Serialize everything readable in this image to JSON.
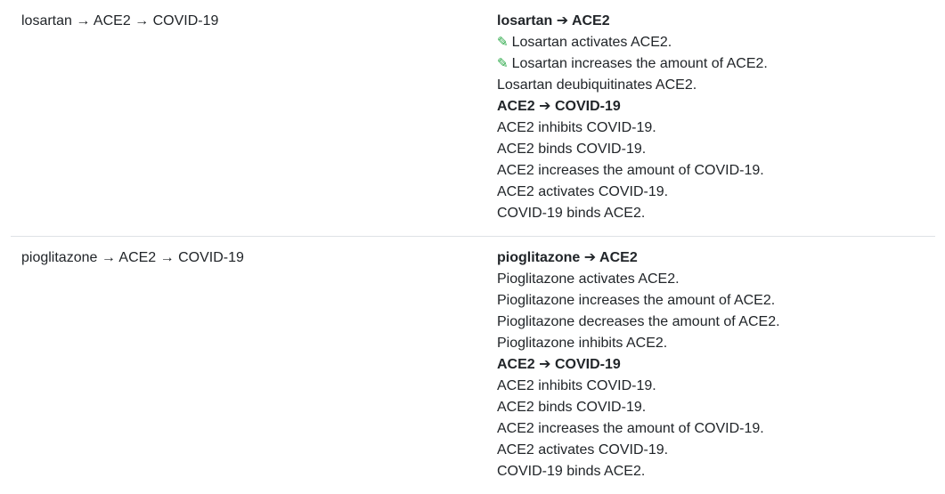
{
  "rows": [
    {
      "path": "losartan → ACE2 → COVID-19",
      "evidence": [
        {
          "type": "header",
          "text": "losartan ➔ ACE2"
        },
        {
          "type": "stmt",
          "curated": true,
          "text": "Losartan activates ACE2."
        },
        {
          "type": "stmt",
          "curated": true,
          "text": "Losartan increases the amount of ACE2."
        },
        {
          "type": "stmt",
          "curated": false,
          "text": "Losartan deubiquitinates ACE2."
        },
        {
          "type": "header",
          "text": "ACE2 ➔ COVID-19"
        },
        {
          "type": "stmt",
          "curated": false,
          "text": "ACE2 inhibits COVID-19."
        },
        {
          "type": "stmt",
          "curated": false,
          "text": "ACE2 binds COVID-19."
        },
        {
          "type": "stmt",
          "curated": false,
          "text": "ACE2 increases the amount of COVID-19."
        },
        {
          "type": "stmt",
          "curated": false,
          "text": "ACE2 activates COVID-19."
        },
        {
          "type": "stmt",
          "curated": false,
          "text": "COVID-19 binds ACE2."
        }
      ]
    },
    {
      "path": "pioglitazone → ACE2 → COVID-19",
      "evidence": [
        {
          "type": "header",
          "text": "pioglitazone ➔ ACE2"
        },
        {
          "type": "stmt",
          "curated": false,
          "text": "Pioglitazone activates ACE2."
        },
        {
          "type": "stmt",
          "curated": false,
          "text": "Pioglitazone increases the amount of ACE2."
        },
        {
          "type": "stmt",
          "curated": false,
          "text": "Pioglitazone decreases the amount of ACE2."
        },
        {
          "type": "stmt",
          "curated": false,
          "text": "Pioglitazone inhibits ACE2."
        },
        {
          "type": "header",
          "text": "ACE2 ➔ COVID-19"
        },
        {
          "type": "stmt",
          "curated": false,
          "text": "ACE2 inhibits COVID-19."
        },
        {
          "type": "stmt",
          "curated": false,
          "text": "ACE2 binds COVID-19."
        },
        {
          "type": "stmt",
          "curated": false,
          "text": "ACE2 increases the amount of COVID-19."
        },
        {
          "type": "stmt",
          "curated": false,
          "text": "ACE2 activates COVID-19."
        },
        {
          "type": "stmt",
          "curated": false,
          "text": "COVID-19 binds ACE2."
        }
      ]
    }
  ],
  "icons": {
    "curated": "pencil-icon",
    "curated_glyph": "✎",
    "curated_color": "#28a745"
  }
}
